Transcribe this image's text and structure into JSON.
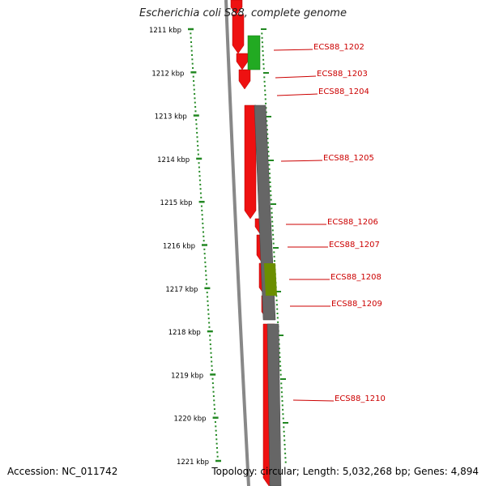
{
  "title": "Escherichia coli S88, complete genome",
  "accession_text": "Accession: NC_011742",
  "summary_text": "Topology: circular; Length: 5,032,268 bp; Genes: 4,894",
  "scale": {
    "unit": "kbp",
    "tick_labels": [
      "1211 kbp",
      "1212 kbp",
      "1213 kbp",
      "1214 kbp",
      "1215 kbp",
      "1216 kbp",
      "1217 kbp",
      "1218 kbp",
      "1219 kbp",
      "1220 kbp",
      "1221 kbp"
    ]
  },
  "colors": {
    "cds_forward": "#ee1111",
    "cds_reverse_a": "#22aa22",
    "cds_reverse_b": "#666666",
    "cds_overlap": "#6b8e00",
    "label": "#cc0000",
    "ruler": "#228822",
    "backbone": "#888888"
  },
  "genes": [
    {
      "label": "ECS88_1202"
    },
    {
      "label": "ECS88_1203"
    },
    {
      "label": "ECS88_1204"
    },
    {
      "label": "ECS88_1205"
    },
    {
      "label": "ECS88_1206"
    },
    {
      "label": "ECS88_1207"
    },
    {
      "label": "ECS88_1208"
    },
    {
      "label": "ECS88_1209"
    },
    {
      "label": "ECS88_1210"
    }
  ]
}
